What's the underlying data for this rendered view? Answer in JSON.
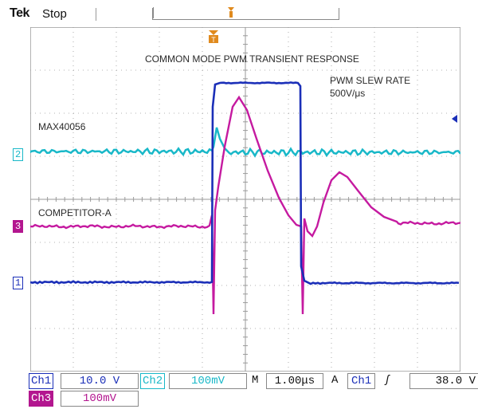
{
  "header": {
    "brand": "Tek",
    "run_state": "Stop"
  },
  "annotations": {
    "title": "COMMON MODE PWM TRANSIENT RESPONSE",
    "slew_line1": "PWM SLEW RATE",
    "slew_line2": "500V/μs",
    "label_max": "MAX40056",
    "label_comp": "COMPETITOR-A"
  },
  "channel_markers": {
    "ch1": "1",
    "ch2": "2",
    "ch3": "3"
  },
  "status": {
    "ch1_label": "Ch1",
    "ch1_scale": "10.0 V",
    "ch2_label": "Ch2",
    "ch2_scale": "100mV",
    "ch3_label": "Ch3",
    "ch3_scale": "100mV",
    "time_label": "M",
    "time_scale": "1.00μs",
    "trigger_mode": "A",
    "trigger_source": "Ch1",
    "trigger_edge": "ʃ",
    "trigger_level": "38.0 V"
  },
  "colors": {
    "ch1": "#1b2fb8",
    "ch2": "#19b8c8",
    "ch3": "#b3168f",
    "grid": "#9a9a9a",
    "trigger": "#e08a1e"
  },
  "icons": {
    "trigger_position": "trigger-position-icon",
    "trigger_level_arrow": "trigger-level-arrow-icon"
  }
}
